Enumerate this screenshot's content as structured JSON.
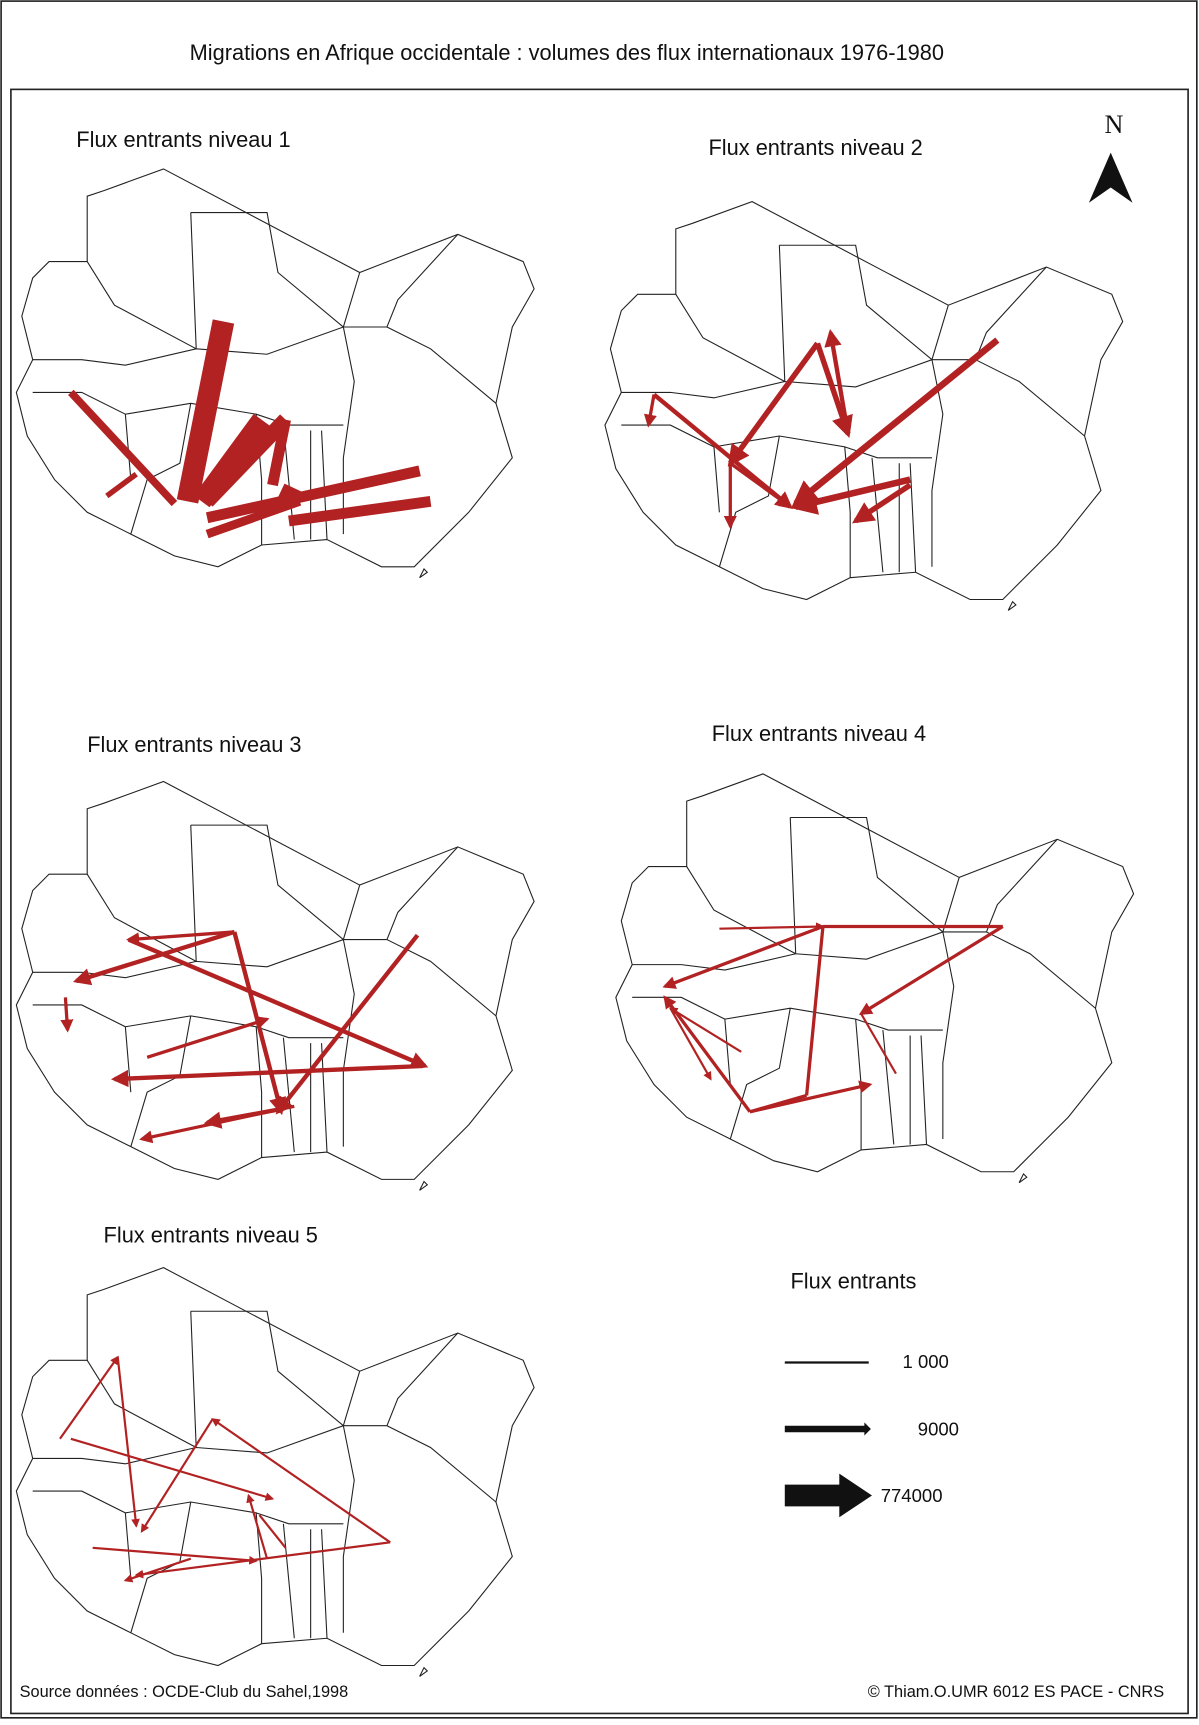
{
  "title": "Migrations en Afrique occidentale : volumes des flux internationaux 1976-1980",
  "panels": [
    {
      "title": "Flux entrants niveau 1"
    },
    {
      "title": "Flux entrants niveau 2"
    },
    {
      "title": "Flux entrants niveau   3"
    },
    {
      "title": "Flux entrants niveau   4"
    },
    {
      "title": "Flux entrants niveau   5"
    }
  ],
  "north": "N",
  "legend": {
    "title": "Flux entrants",
    "items": [
      {
        "label": "1 000"
      },
      {
        "label": "9000"
      },
      {
        "label": "774000"
      }
    ]
  },
  "source": "Source données : OCDE-Club du Sahel,1998",
  "copyright": "© Thiam.O.UMR 6012 ES PACE - CNRS"
}
